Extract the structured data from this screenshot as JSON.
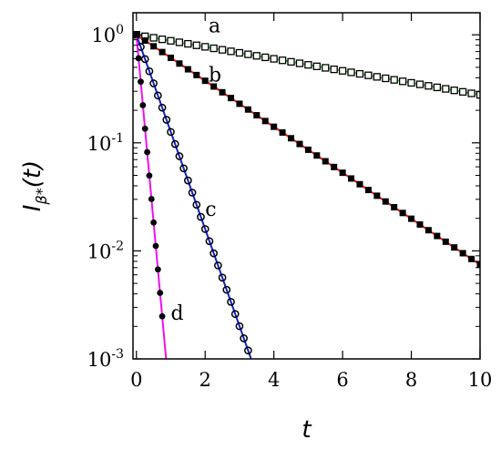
{
  "chart_data": {
    "type": "scatter",
    "title": "",
    "xlabel": "t",
    "ylabel": {
      "base": "I",
      "sub": "β*",
      "suffix": "(t)"
    },
    "xlim": [
      -0.1,
      10.0
    ],
    "ylim": [
      0.001,
      1.6
    ],
    "yscale": "log",
    "grid": false,
    "legend": "none",
    "xticks": [
      {
        "value": 0,
        "label": "0"
      },
      {
        "value": 2,
        "label": "2"
      },
      {
        "value": 4,
        "label": "4"
      },
      {
        "value": 6,
        "label": "6"
      },
      {
        "value": 8,
        "label": "8"
      },
      {
        "value": 10,
        "label": "10"
      }
    ],
    "yticks": [
      {
        "value": 1,
        "base": "10",
        "exp": "0"
      },
      {
        "value": 0.1,
        "base": "10",
        "exp": "-1"
      },
      {
        "value": 0.01,
        "base": "10",
        "exp": "-2"
      },
      {
        "value": 0.001,
        "base": "10",
        "exp": "-3"
      }
    ],
    "series": [
      {
        "label": "a",
        "label_x": 2.1,
        "label_y": 1.05,
        "marker": "open-square",
        "line_color": "#22dd22",
        "x_start": 0,
        "x_end": 10,
        "x_step": 0.25,
        "y0": 1.0,
        "decay_rate": 0.128
      },
      {
        "label": "b",
        "label_x": 2.1,
        "label_y": 0.37,
        "marker": "filled-square",
        "line_color": "#ee1111",
        "x_start": 0,
        "x_end": 10,
        "x_step": 0.25,
        "y0": 1.0,
        "decay_rate": 0.49
      },
      {
        "label": "c",
        "label_x": 2.0,
        "label_y": 0.021,
        "marker": "open-circle",
        "line_color": "#1122cc",
        "x_start": 0,
        "x_end": 3.25,
        "x_step": 0.125,
        "y0": 1.0,
        "decay_rate": 2.07
      },
      {
        "label": "d",
        "label_x": 1.0,
        "label_y": 0.0023,
        "marker": "filled-circle",
        "line_color": "#ee11ee",
        "x_start": 0,
        "x_end": 0.75,
        "x_step": 0.0625,
        "y0": 1.0,
        "decay_rate": 8.0
      }
    ]
  }
}
